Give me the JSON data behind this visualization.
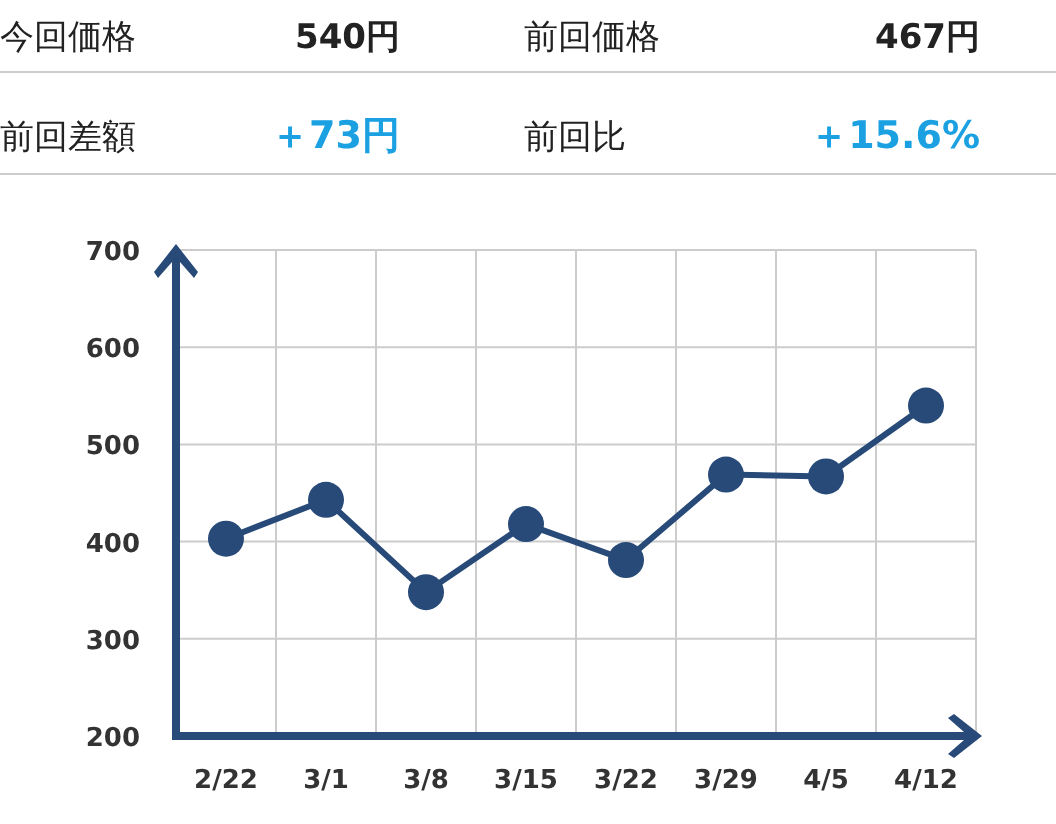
{
  "chart_data": [
    {
      "type": "other",
      "annotations": [
        "今回価格",
        "540円",
        "前回価格",
        "467円",
        "前回差額",
        "＋73円",
        "前回比",
        "＋15.6%"
      ]
    },
    {
      "type": "line",
      "categories": [
        "2/22",
        "3/1",
        "3/8",
        "3/15",
        "3/22",
        "3/29",
        "4/5",
        "4/12"
      ],
      "values": [
        403,
        443,
        348,
        418,
        381,
        469,
        467,
        540
      ],
      "color": "#284a78",
      "ylim": [
        200,
        700
      ],
      "yticks": [
        200,
        300,
        400,
        500,
        600,
        700
      ],
      "grid": true,
      "marker": "circle"
    }
  ]
}
